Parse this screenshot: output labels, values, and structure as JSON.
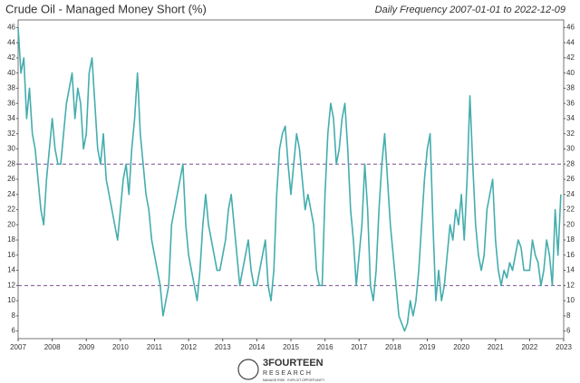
{
  "chart_data": {
    "type": "line",
    "title": "Crude Oil - Managed Money Short (%)",
    "subtitle": "Daily Frequency 2007-01-01 to 2022-12-09",
    "logo": {
      "name": "3FOURTEEN",
      "sub": "RESEARCH",
      "tagline": "MANAGE RISK · EXPLOIT OPPORTUNITY"
    },
    "color": "#45adad",
    "hline_color": "#7a4f8f",
    "hlines": [
      28,
      12
    ],
    "xlim": [
      2007,
      2023
    ],
    "xticks": [
      2007,
      2008,
      2009,
      2010,
      2011,
      2012,
      2013,
      2014,
      2015,
      2016,
      2017,
      2018,
      2019,
      2020,
      2021,
      2022,
      2023
    ],
    "ylim": [
      5,
      47
    ],
    "yticks": [
      6,
      8,
      10,
      12,
      14,
      16,
      18,
      20,
      22,
      24,
      26,
      28,
      30,
      32,
      34,
      36,
      38,
      40,
      42,
      44,
      46
    ],
    "x": [
      2007,
      2007.083,
      2007.167,
      2007.25,
      2007.333,
      2007.417,
      2007.5,
      2007.583,
      2007.667,
      2007.75,
      2007.833,
      2007.917,
      2008,
      2008.083,
      2008.167,
      2008.25,
      2008.333,
      2008.417,
      2008.5,
      2008.583,
      2008.667,
      2008.75,
      2008.833,
      2008.917,
      2009,
      2009.083,
      2009.167,
      2009.25,
      2009.333,
      2009.417,
      2009.5,
      2009.583,
      2009.667,
      2009.75,
      2009.833,
      2009.917,
      2010,
      2010.083,
      2010.167,
      2010.25,
      2010.333,
      2010.417,
      2010.5,
      2010.583,
      2010.667,
      2010.75,
      2010.833,
      2010.917,
      2011,
      2011.083,
      2011.167,
      2011.25,
      2011.333,
      2011.417,
      2011.5,
      2011.583,
      2011.667,
      2011.75,
      2011.833,
      2011.917,
      2012,
      2012.083,
      2012.167,
      2012.25,
      2012.333,
      2012.417,
      2012.5,
      2012.583,
      2012.667,
      2012.75,
      2012.833,
      2012.917,
      2013,
      2013.083,
      2013.167,
      2013.25,
      2013.333,
      2013.417,
      2013.5,
      2013.583,
      2013.667,
      2013.75,
      2013.833,
      2013.917,
      2014,
      2014.083,
      2014.167,
      2014.25,
      2014.333,
      2014.417,
      2014.5,
      2014.583,
      2014.667,
      2014.75,
      2014.833,
      2014.917,
      2015,
      2015.083,
      2015.167,
      2015.25,
      2015.333,
      2015.417,
      2015.5,
      2015.583,
      2015.667,
      2015.75,
      2015.833,
      2015.917,
      2016,
      2016.083,
      2016.167,
      2016.25,
      2016.333,
      2016.417,
      2016.5,
      2016.583,
      2016.667,
      2016.75,
      2016.833,
      2016.917,
      2017,
      2017.083,
      2017.167,
      2017.25,
      2017.333,
      2017.417,
      2017.5,
      2017.583,
      2017.667,
      2017.75,
      2017.833,
      2017.917,
      2018,
      2018.083,
      2018.167,
      2018.25,
      2018.333,
      2018.417,
      2018.5,
      2018.583,
      2018.667,
      2018.75,
      2018.833,
      2018.917,
      2019,
      2019.083,
      2019.167,
      2019.25,
      2019.333,
      2019.417,
      2019.5,
      2019.583,
      2019.667,
      2019.75,
      2019.833,
      2019.917,
      2020,
      2020.083,
      2020.167,
      2020.25,
      2020.333,
      2020.417,
      2020.5,
      2020.583,
      2020.667,
      2020.75,
      2020.833,
      2020.917,
      2021,
      2021.083,
      2021.167,
      2021.25,
      2021.333,
      2021.417,
      2021.5,
      2021.583,
      2021.667,
      2021.75,
      2021.833,
      2021.917,
      2022,
      2022.083,
      2022.167,
      2022.25,
      2022.333,
      2022.417,
      2022.5,
      2022.583,
      2022.667,
      2022.75,
      2022.833,
      2022.917
    ],
    "values": [
      46,
      40,
      42,
      34,
      38,
      32,
      30,
      26,
      22,
      20,
      26,
      30,
      34,
      30,
      28,
      28,
      32,
      36,
      38,
      40,
      34,
      38,
      36,
      30,
      32,
      40,
      42,
      36,
      30,
      28,
      32,
      26,
      24,
      22,
      20,
      18,
      22,
      26,
      28,
      24,
      30,
      34,
      40,
      32,
      28,
      24,
      22,
      18,
      16,
      14,
      12,
      8,
      10,
      12,
      20,
      22,
      24,
      26,
      28,
      20,
      16,
      14,
      12,
      10,
      14,
      20,
      24,
      20,
      18,
      16,
      14,
      14,
      16,
      18,
      22,
      24,
      20,
      16,
      12,
      14,
      16,
      18,
      14,
      12,
      12,
      14,
      16,
      18,
      12,
      10,
      14,
      24,
      30,
      32,
      33,
      28,
      24,
      28,
      32,
      30,
      26,
      22,
      24,
      22,
      20,
      14,
      12,
      12,
      24,
      32,
      36,
      34,
      28,
      30,
      34,
      36,
      30,
      22,
      18,
      12,
      16,
      20,
      28,
      22,
      12,
      10,
      14,
      22,
      28,
      32,
      26,
      20,
      16,
      12,
      8,
      7,
      6,
      7,
      10,
      8,
      10,
      14,
      20,
      26,
      30,
      32,
      20,
      10,
      14,
      10,
      12,
      16,
      20,
      18,
      22,
      20,
      24,
      18,
      26,
      37,
      28,
      20,
      16,
      14,
      16,
      22,
      24,
      26,
      18,
      14,
      12,
      14,
      13,
      15,
      14,
      16,
      18,
      17,
      14,
      14,
      14,
      18,
      16,
      15,
      12,
      14,
      18,
      16,
      12,
      22,
      16,
      24
    ]
  }
}
